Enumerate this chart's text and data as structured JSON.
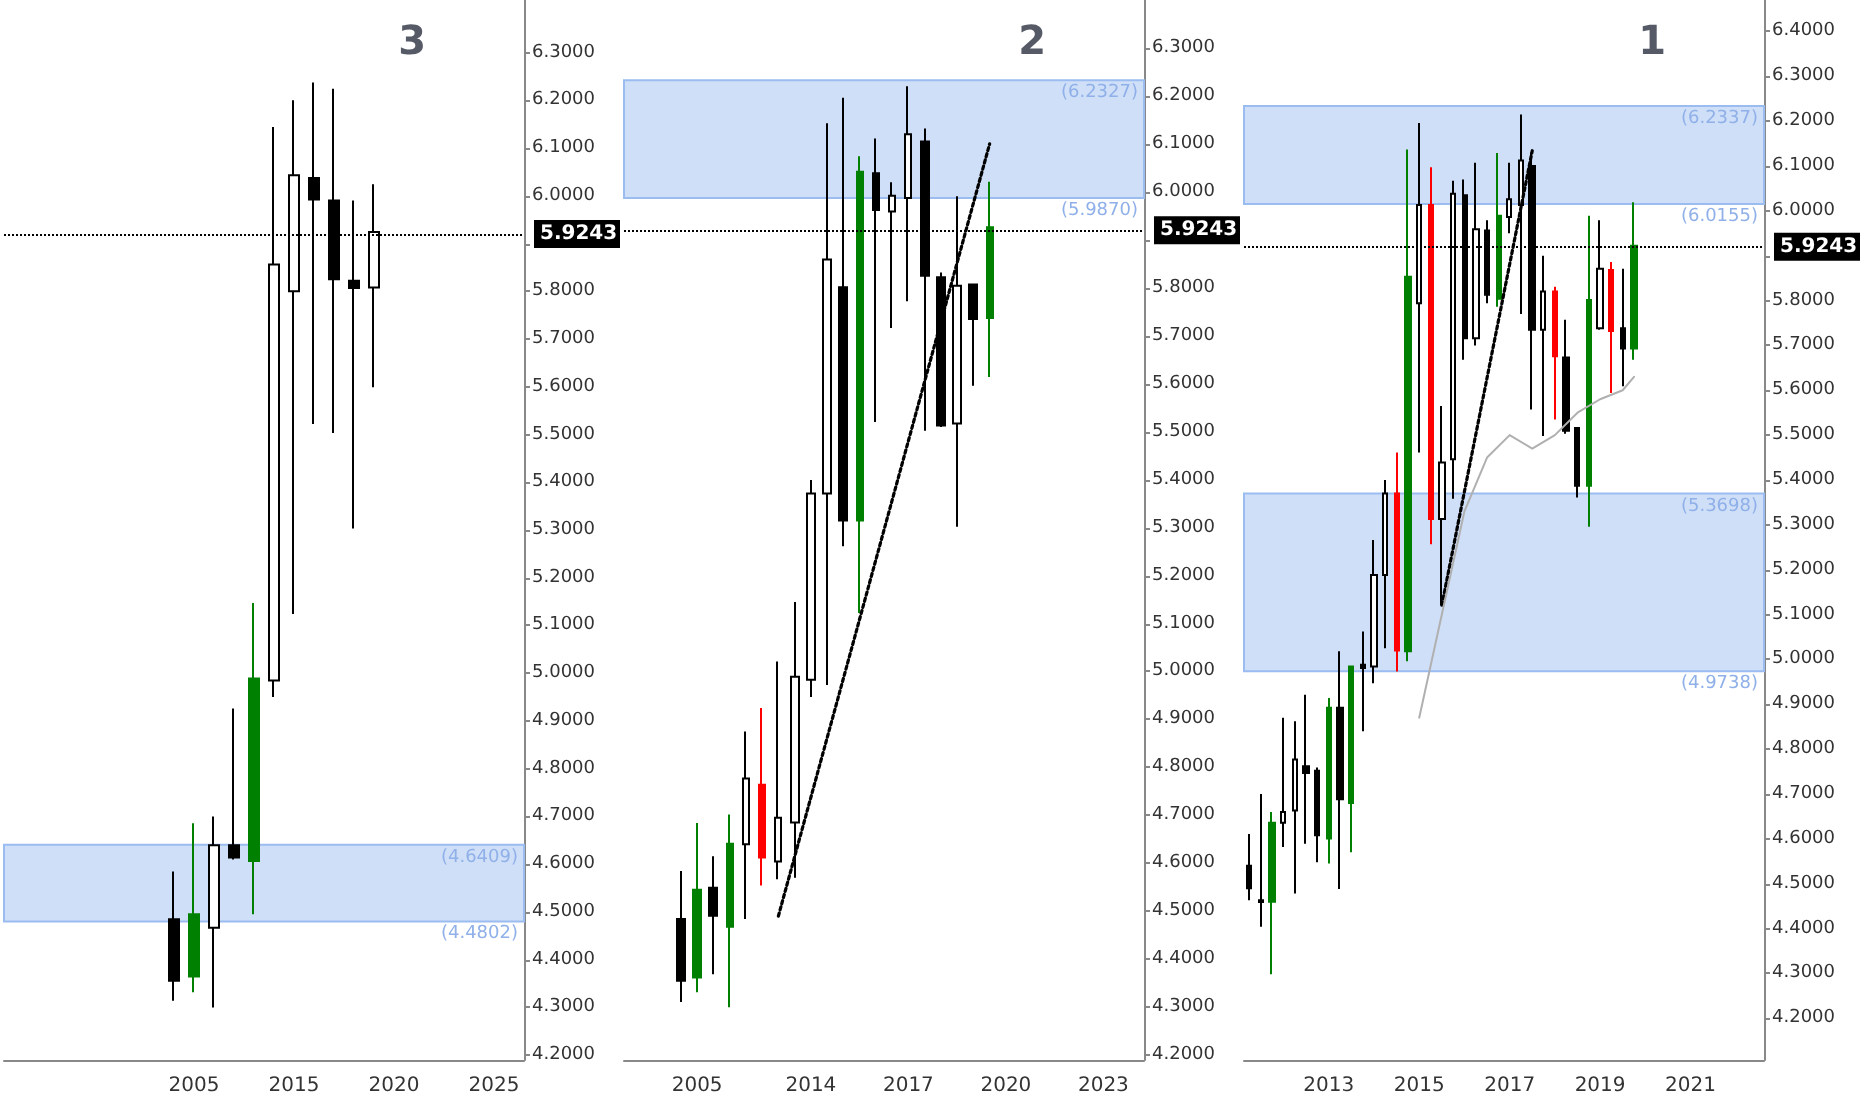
{
  "chart_data": [
    {
      "type": "candlestick",
      "categories": [
        null,
        null,
        null,
        null,
        null,
        null,
        null,
        null,
        null,
        "2005",
        null,
        null,
        null,
        null,
        "2015",
        null,
        null,
        null,
        null,
        "2020",
        null,
        null,
        null,
        null,
        "2025",
        null
      ],
      "ohlc": [
        null,
        null,
        null,
        null,
        null,
        null,
        null,
        null,
        [
          4.485,
          4.585,
          4.314,
          4.356
        ],
        [
          4.365,
          4.686,
          4.332,
          4.495
        ],
        [
          4.467,
          4.7,
          4.3,
          4.64
        ],
        [
          4.64,
          4.926,
          4.61,
          4.614
        ],
        [
          4.607,
          5.147,
          4.495,
          4.989
        ],
        [
          4.985,
          6.144,
          4.95,
          5.856
        ],
        [
          5.8,
          6.2,
          5.124,
          6.043
        ],
        [
          6.037,
          6.237,
          5.522,
          5.992
        ],
        [
          5.99,
          6.224,
          5.503,
          5.825
        ],
        [
          5.822,
          5.99,
          5.303,
          5.807
        ],
        [
          5.808,
          6.024,
          5.599,
          5.924
        ],
        null,
        null,
        null,
        null,
        null,
        null,
        null
      ],
      "colors": [
        null,
        null,
        null,
        null,
        null,
        null,
        null,
        null,
        "#000000",
        "#008000",
        "#ffffff",
        "#000000",
        "#008000",
        "#ffffff",
        "#ffffff",
        "#000000",
        "#000000",
        "#000000",
        "#ffffff",
        null,
        null,
        null,
        null,
        null,
        null,
        null
      ],
      "ylim": [
        4.19,
        6.41
      ],
      "yticks": [
        {
          "value": 4.2,
          "label": "4.2000"
        },
        {
          "value": 4.3,
          "label": "4.3000"
        },
        {
          "value": 4.4,
          "label": "4.4000"
        },
        {
          "value": 4.5,
          "label": "4.5000"
        },
        {
          "value": 4.6,
          "label": "4.6000"
        },
        {
          "value": 4.7,
          "label": "4.7000"
        },
        {
          "value": 4.8,
          "label": "4.8000"
        },
        {
          "value": 4.9,
          "label": "4.9000"
        },
        {
          "value": 5.0,
          "label": "5.0000"
        },
        {
          "value": 5.1,
          "label": "5.1000"
        },
        {
          "value": 5.2,
          "label": "5.2000"
        },
        {
          "value": 5.3,
          "label": "5.3000"
        },
        {
          "value": 5.4,
          "label": "5.4000"
        },
        {
          "value": 5.5,
          "label": "5.5000"
        },
        {
          "value": 5.6,
          "label": "5.6000"
        },
        {
          "value": 5.7,
          "label": "5.7000"
        },
        {
          "value": 5.8,
          "label": "5.8000"
        },
        {
          "value": 5.9,
          "label": null
        },
        {
          "value": 6.0,
          "label": "6.0000"
        },
        {
          "value": 6.1,
          "label": "6.1000"
        },
        {
          "value": 6.2,
          "label": "6.2000"
        },
        {
          "value": 6.3,
          "label": "6.3000"
        }
      ],
      "ref_lines": [
        {
          "axis": "y",
          "value": 5.9243,
          "label": "5.9243",
          "color": "#000000",
          "line_style": "dotted"
        }
      ],
      "bands": [
        {
          "axis": "y",
          "from": 4.4802,
          "to": 4.6409,
          "color": "#d0dff8"
        }
      ],
      "annotations": [
        "3",
        {
          "text": "(4.6409)",
          "y": 4.6409
        },
        {
          "text": "(4.4802)",
          "y": 4.4802
        }
      ]
    },
    {
      "type": "candlestick",
      "categories": [
        null,
        null,
        null,
        null,
        "2005",
        null,
        null,
        null,
        null,
        null,
        null,
        "2014",
        null,
        null,
        null,
        null,
        null,
        "2017",
        null,
        null,
        null,
        null,
        null,
        "2020",
        null,
        null,
        null,
        null,
        null,
        "2023",
        null,
        null
      ],
      "ohlc": [
        null,
        null,
        null,
        [
          4.484,
          4.584,
          4.311,
          4.355
        ],
        [
          4.362,
          4.684,
          4.331,
          4.545
        ],
        [
          4.549,
          4.615,
          4.369,
          4.491
        ],
        [
          4.468,
          4.702,
          4.3,
          4.641
        ],
        [
          4.64,
          4.875,
          4.484,
          4.777
        ],
        [
          4.764,
          4.924,
          4.554,
          4.612
        ],
        [
          4.604,
          5.021,
          4.567,
          4.695
        ],
        [
          4.685,
          5.145,
          4.57,
          4.989
        ],
        [
          4.983,
          5.399,
          4.947,
          5.371
        ],
        [
          5.371,
          6.143,
          4.972,
          5.859
        ],
        [
          5.801,
          6.196,
          5.261,
          5.315
        ],
        [
          5.315,
          6.074,
          5.122,
          6.042
        ],
        [
          6.039,
          6.111,
          5.52,
          5.962
        ],
        [
          5.959,
          6.02,
          5.716,
          5.992
        ],
        [
          5.987,
          6.22,
          5.772,
          6.12
        ],
        [
          6.105,
          6.132,
          5.502,
          5.825
        ],
        [
          5.822,
          5.832,
          5.51,
          5.513
        ],
        [
          5.517,
          5.991,
          5.302,
          5.804
        ],
        [
          5.807,
          5.807,
          5.596,
          5.735
        ],
        [
          5.737,
          6.021,
          5.614,
          5.926
        ],
        null,
        null,
        null,
        null,
        null,
        null,
        null,
        null,
        null
      ],
      "colors": [
        null,
        null,
        null,
        "#000000",
        "#008000",
        "#000000",
        "#008000",
        "#ffffff",
        "#ff0000",
        "#ffffff",
        "#ffffff",
        "#ffffff",
        "#ffffff",
        "#000000",
        "#008000",
        "#000000",
        "#ffffff",
        "#ffffff",
        "#000000",
        "#000000",
        "#ffffff",
        "#000000",
        "#008000",
        null,
        null,
        null,
        null,
        null,
        null,
        null,
        null,
        null
      ],
      "series": [
        {
          "type": "line",
          "color": "#000000",
          "line_style": "dotted",
          "values": [
            null,
            null,
            null,
            null,
            null,
            null,
            null,
            null,
            null,
            4.49,
            null,
            null,
            null,
            null,
            null,
            null,
            null,
            null,
            null,
            null,
            null,
            null,
            6.1,
            null,
            null,
            null,
            null,
            null,
            null,
            null,
            null,
            null
          ]
        }
      ],
      "ylim": [
        4.19,
        6.4
      ],
      "yticks": [
        {
          "value": 4.2,
          "label": "4.2000"
        },
        {
          "value": 4.3,
          "label": "4.3000"
        },
        {
          "value": 4.4,
          "label": "4.4000"
        },
        {
          "value": 4.5,
          "label": "4.5000"
        },
        {
          "value": 4.6,
          "label": "4.6000"
        },
        {
          "value": 4.7,
          "label": "4.7000"
        },
        {
          "value": 4.8,
          "label": "4.8000"
        },
        {
          "value": 4.9,
          "label": "4.9000"
        },
        {
          "value": 5.0,
          "label": "5.0000"
        },
        {
          "value": 5.1,
          "label": "5.1000"
        },
        {
          "value": 5.2,
          "label": "5.2000"
        },
        {
          "value": 5.3,
          "label": "5.3000"
        },
        {
          "value": 5.4,
          "label": "5.4000"
        },
        {
          "value": 5.5,
          "label": "5.5000"
        },
        {
          "value": 5.6,
          "label": "5.6000"
        },
        {
          "value": 5.7,
          "label": "5.7000"
        },
        {
          "value": 5.8,
          "label": "5.8000"
        },
        {
          "value": 5.9,
          "label": null
        },
        {
          "value": 6.0,
          "label": "6.0000"
        },
        {
          "value": 6.1,
          "label": "6.1000"
        },
        {
          "value": 6.2,
          "label": "6.2000"
        },
        {
          "value": 6.3,
          "label": "6.3000"
        }
      ],
      "ref_lines": [
        {
          "axis": "y",
          "value": 5.9243,
          "label": "5.9243",
          "color": "#000000",
          "line_style": "dotted"
        }
      ],
      "bands": [
        {
          "axis": "y",
          "from": 5.987,
          "to": 6.2327,
          "color": "#d0dff8"
        }
      ],
      "annotations": [
        "2",
        {
          "text": "(6.2327)",
          "y": 6.2327
        },
        {
          "text": "(5.9870)",
          "y": 5.987
        }
      ]
    },
    {
      "type": "candlestick",
      "categories": [
        null,
        null,
        null,
        null,
        null,
        null,
        null,
        "2013",
        null,
        null,
        null,
        null,
        null,
        null,
        null,
        "2015",
        null,
        null,
        null,
        null,
        null,
        null,
        null,
        "2017",
        null,
        null,
        null,
        null,
        null,
        null,
        null,
        "2019",
        null,
        null,
        null,
        null,
        null,
        null,
        null,
        "2021",
        null,
        null,
        null,
        null,
        null,
        null
      ],
      "ohlc": [
        [
          4.54,
          4.611,
          4.463,
          4.49
        ],
        [
          4.463,
          4.7,
          4.404,
          4.459
        ],
        [
          4.46,
          4.66,
          4.298,
          4.636
        ],
        [
          4.636,
          4.87,
          4.582,
          4.66
        ],
        [
          4.663,
          4.862,
          4.478,
          4.777
        ],
        [
          4.762,
          4.921,
          4.589,
          4.747
        ],
        [
          4.752,
          4.759,
          4.548,
          4.608
        ],
        [
          4.601,
          4.914,
          4.545,
          4.892
        ],
        [
          4.892,
          5.018,
          4.488,
          4.688
        ],
        [
          4.68,
          4.984,
          4.57,
          4.984
        ],
        [
          4.988,
          5.062,
          4.84,
          4.981
        ],
        [
          4.984,
          5.266,
          4.947,
          5.188
        ],
        [
          5.188,
          5.4,
          5.025,
          5.37
        ],
        [
          5.37,
          5.461,
          4.973,
          5.02
        ],
        [
          5.018,
          6.137,
          4.996,
          5.853
        ],
        [
          5.794,
          6.196,
          5.461,
          6.013
        ],
        [
          6.013,
          6.097,
          5.257,
          5.313
        ],
        [
          5.313,
          5.565,
          5.121,
          5.439
        ],
        [
          5.446,
          6.067,
          5.358,
          6.038
        ],
        [
          6.035,
          6.07,
          5.668,
          5.716
        ],
        [
          5.716,
          6.107,
          5.7,
          5.959
        ],
        [
          5.956,
          5.979,
          5.794,
          5.813
        ],
        [
          5.804,
          6.129,
          5.786,
          5.989
        ],
        [
          5.986,
          6.107,
          5.95,
          6.026
        ],
        [
          6.013,
          6.215,
          5.77,
          6.112
        ],
        [
          6.1,
          6.13,
          5.557,
          5.735
        ],
        [
          5.735,
          5.9,
          5.498,
          5.82
        ],
        [
          5.82,
          5.831,
          5.535,
          5.676
        ],
        [
          5.673,
          5.757,
          5.503,
          5.51
        ],
        [
          5.516,
          5.516,
          5.361,
          5.387
        ],
        [
          5.387,
          5.989,
          5.296,
          5.801
        ],
        [
          5.738,
          5.979,
          5.735,
          5.871
        ],
        [
          5.868,
          5.886,
          5.594,
          5.732
        ],
        [
          5.738,
          5.871,
          5.609,
          5.693
        ],
        [
          5.693,
          6.019,
          5.668,
          5.922
        ],
        null,
        null,
        null,
        null,
        null,
        null,
        null,
        null,
        null,
        null,
        null
      ],
      "colors": [
        "#000000",
        "#000000",
        "#008000",
        "#ffffff",
        "#ffffff",
        "#000000",
        "#000000",
        "#008000",
        "#000000",
        "#008000",
        "#000000",
        "#ffffff",
        "#ffffff",
        "#ff0000",
        "#008000",
        "#ffffff",
        "#ff0000",
        "#ffffff",
        "#ffffff",
        "#000000",
        "#ffffff",
        "#000000",
        "#008000",
        "#ffffff",
        "#ffffff",
        "#000000",
        "#ffffff",
        "#ff0000",
        "#000000",
        "#000000",
        "#008000",
        "#ffffff",
        "#ff0000",
        "#000000",
        "#008000",
        null,
        null,
        null,
        null,
        null,
        null,
        null,
        null,
        null,
        null,
        null
      ],
      "series": [
        {
          "type": "line",
          "color": "#000000",
          "line_style": "dotted",
          "values": [
            null,
            null,
            null,
            null,
            null,
            null,
            null,
            null,
            null,
            null,
            null,
            null,
            null,
            null,
            null,
            null,
            null,
            5.121,
            null,
            null,
            null,
            null,
            null,
            null,
            null,
            6.134,
            null,
            null,
            null,
            null,
            null,
            null,
            null,
            null,
            null,
            null,
            null,
            null,
            null,
            null,
            null,
            null,
            null,
            null,
            null,
            null
          ]
        },
        {
          "type": "line",
          "color": "#b0b0b0",
          "line_style": "solid",
          "values": [
            null,
            null,
            null,
            null,
            null,
            null,
            null,
            null,
            null,
            null,
            null,
            null,
            null,
            null,
            null,
            4.87,
            null,
            5.1,
            null,
            5.33,
            null,
            5.45,
            null,
            5.5,
            null,
            5.47,
            null,
            5.5,
            null,
            5.55,
            null,
            5.58,
            null,
            5.6,
            5.63,
            null,
            null,
            null,
            null,
            null,
            null,
            null,
            null,
            null,
            null,
            null
          ]
        }
      ],
      "ylim": [
        4.107,
        6.47
      ],
      "yticks": [
        {
          "value": 4.2,
          "label": "4.2000"
        },
        {
          "value": 4.3,
          "label": "4.3000"
        },
        {
          "value": 4.4,
          "label": "4.4000"
        },
        {
          "value": 4.5,
          "label": "4.5000"
        },
        {
          "value": 4.6,
          "label": "4.6000"
        },
        {
          "value": 4.7,
          "label": "4.7000"
        },
        {
          "value": 4.8,
          "label": "4.8000"
        },
        {
          "value": 4.9,
          "label": "4.9000"
        },
        {
          "value": 5.0,
          "label": "5.0000"
        },
        {
          "value": 5.1,
          "label": "5.1000"
        },
        {
          "value": 5.2,
          "label": "5.2000"
        },
        {
          "value": 5.3,
          "label": "5.3000"
        },
        {
          "value": 5.4,
          "label": "5.4000"
        },
        {
          "value": 5.5,
          "label": "5.5000"
        },
        {
          "value": 5.6,
          "label": "5.6000"
        },
        {
          "value": 5.7,
          "label": "5.7000"
        },
        {
          "value": 5.8,
          "label": "5.8000"
        },
        {
          "value": 5.9,
          "label": null
        },
        {
          "value": 6.0,
          "label": "6.0000"
        },
        {
          "value": 6.1,
          "label": "6.1000"
        },
        {
          "value": 6.2,
          "label": "6.2000"
        },
        {
          "value": 6.3,
          "label": "6.3000"
        },
        {
          "value": 6.4,
          "label": "6.4000"
        }
      ],
      "ref_lines": [
        {
          "axis": "y",
          "value": 5.9243,
          "label": "5.9243",
          "color": "#000000",
          "line_style": "dotted"
        }
      ],
      "bands": [
        {
          "axis": "y",
          "from": 6.0155,
          "to": 6.2337,
          "color": "#d0dff8"
        },
        {
          "axis": "y",
          "from": 4.9738,
          "to": 5.3698,
          "color": "#d0dff8"
        }
      ],
      "annotations": [
        "1",
        {
          "text": "(6.2337)",
          "y": 6.2337
        },
        {
          "text": "(6.0155)",
          "y": 6.0155
        },
        {
          "text": "(5.3698)",
          "y": 5.3698
        },
        {
          "text": "(4.9738)",
          "y": 4.9738
        }
      ]
    }
  ]
}
